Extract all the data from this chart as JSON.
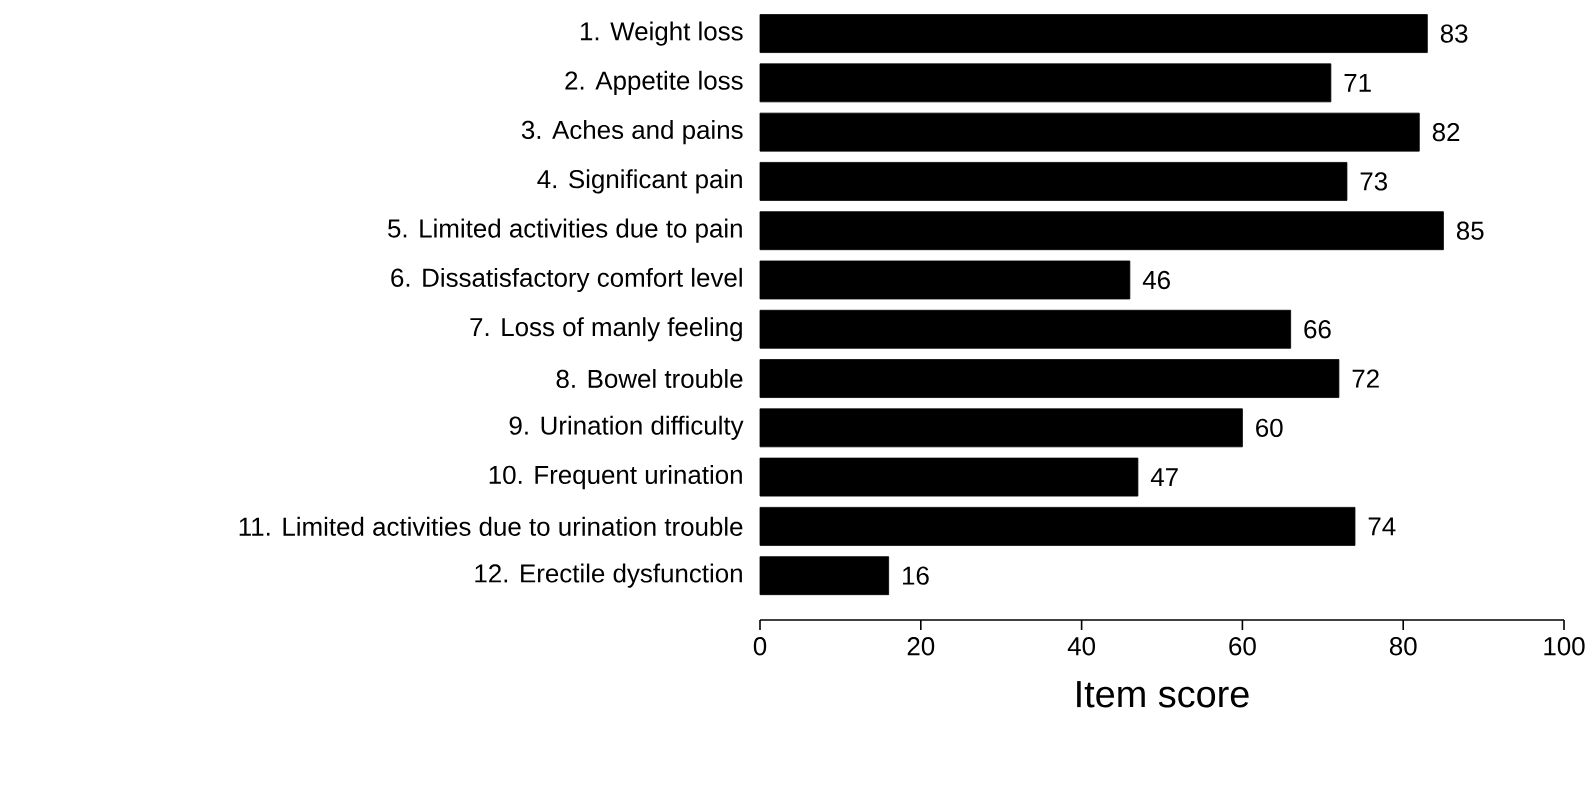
{
  "chart_data": {
    "type": "bar",
    "orientation": "horizontal",
    "xlabel": "Item score",
    "categories": [
      "1. Weight loss",
      "2. Appetite loss",
      "3. Aches and pains",
      "4. Significant pain",
      "5. Limited activities due to pain",
      "6. Dissatisfactory comfort level",
      "7. Loss of manly feeling",
      "8. Bowel trouble",
      "9. Urination difficulty",
      "10. Frequent urination",
      "11. Limited activities due to urination trouble",
      "12. Erectile dysfunction"
    ],
    "values": [
      83,
      71,
      82,
      73,
      85,
      46,
      66,
      72,
      60,
      47,
      74,
      16
    ],
    "color": "#000000",
    "data_labels": true,
    "xlim": [
      0,
      100
    ],
    "xticks": [
      0,
      20,
      40,
      60,
      80,
      100
    ],
    "grid": false
  }
}
